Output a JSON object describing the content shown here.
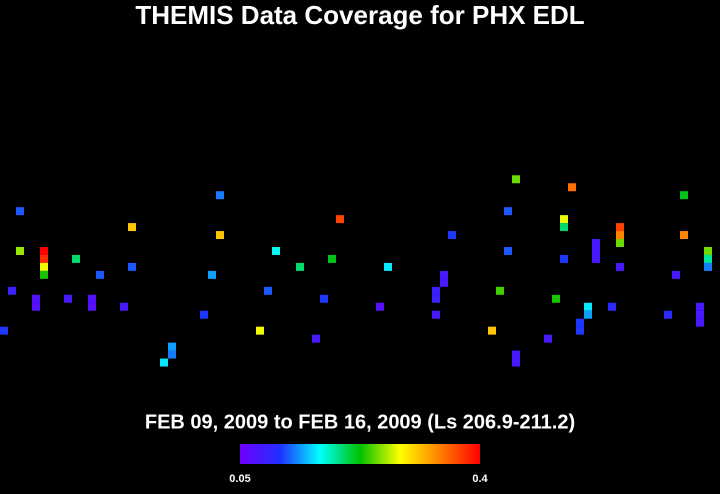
{
  "chart_data": {
    "type": "heatmap",
    "title": "THEMIS Data Coverage for PHX EDL",
    "subtitle": "FEB 09, 2009 to FEB 16, 2009 (Ls 206.9-211.2)",
    "xlim": [
      0,
      90
    ],
    "ylim": [
      0,
      62
    ],
    "clim": [
      0.05,
      0.4
    ],
    "cticks": [
      0.05,
      0.4
    ],
    "colorscale": [
      "#7000ff",
      "#2030ff",
      "#00ffff",
      "#00c000",
      "#ffff00",
      "#ff8000",
      "#ff0000"
    ],
    "x": [
      2,
      2,
      5,
      5,
      5,
      5,
      1,
      4,
      4,
      0,
      9,
      12,
      8,
      11,
      11,
      15,
      16,
      16,
      21,
      21,
      20,
      27,
      27,
      26,
      25,
      32,
      33,
      34,
      37,
      41,
      42,
      40,
      39,
      48,
      47,
      55,
      55,
      54,
      54,
      54,
      56,
      62,
      61,
      63,
      63,
      64,
      64,
      64,
      68,
      69,
      70,
      70,
      70,
      71,
      72,
      72,
      73,
      73,
      74,
      74,
      74,
      76,
      77,
      77,
      77,
      77,
      83,
      84,
      85,
      85,
      87,
      87,
      87,
      88,
      88,
      88
    ],
    "y": [
      26,
      31,
      31,
      32,
      33,
      34,
      36,
      37,
      38,
      41,
      32,
      34,
      37,
      37,
      38,
      38,
      28,
      33,
      43,
      44,
      45,
      24,
      29,
      34,
      39,
      41,
      36,
      31,
      33,
      32,
      27,
      37,
      42,
      33,
      38,
      34,
      35,
      36,
      37,
      39,
      29,
      36,
      41,
      26,
      31,
      22,
      44,
      45,
      42,
      37,
      27,
      28,
      32,
      23,
      40,
      41,
      38,
      39,
      30,
      31,
      32,
      38,
      28,
      29,
      30,
      33,
      39,
      34,
      24,
      29,
      38,
      39,
      40,
      31,
      32,
      33
    ],
    "values": [
      0.12,
      0.26,
      0.4,
      0.38,
      0.28,
      0.23,
      0.09,
      0.07,
      0.07,
      0.11,
      0.2,
      0.12,
      0.08,
      0.07,
      0.07,
      0.08,
      0.31,
      0.12,
      0.14,
      0.13,
      0.16,
      0.13,
      0.31,
      0.14,
      0.11,
      0.28,
      0.12,
      0.17,
      0.2,
      0.22,
      0.37,
      0.11,
      0.08,
      0.16,
      0.07,
      0.08,
      0.08,
      0.09,
      0.09,
      0.08,
      0.11,
      0.24,
      0.31,
      0.12,
      0.12,
      0.25,
      0.08,
      0.08,
      0.08,
      0.23,
      0.28,
      0.2,
      0.11,
      0.35,
      0.11,
      0.11,
      0.16,
      0.14,
      0.08,
      0.08,
      0.08,
      0.1,
      0.37,
      0.34,
      0.25,
      0.08,
      0.1,
      0.08,
      0.22,
      0.34,
      0.08,
      0.08,
      0.08,
      0.25,
      0.19,
      0.13
    ]
  }
}
